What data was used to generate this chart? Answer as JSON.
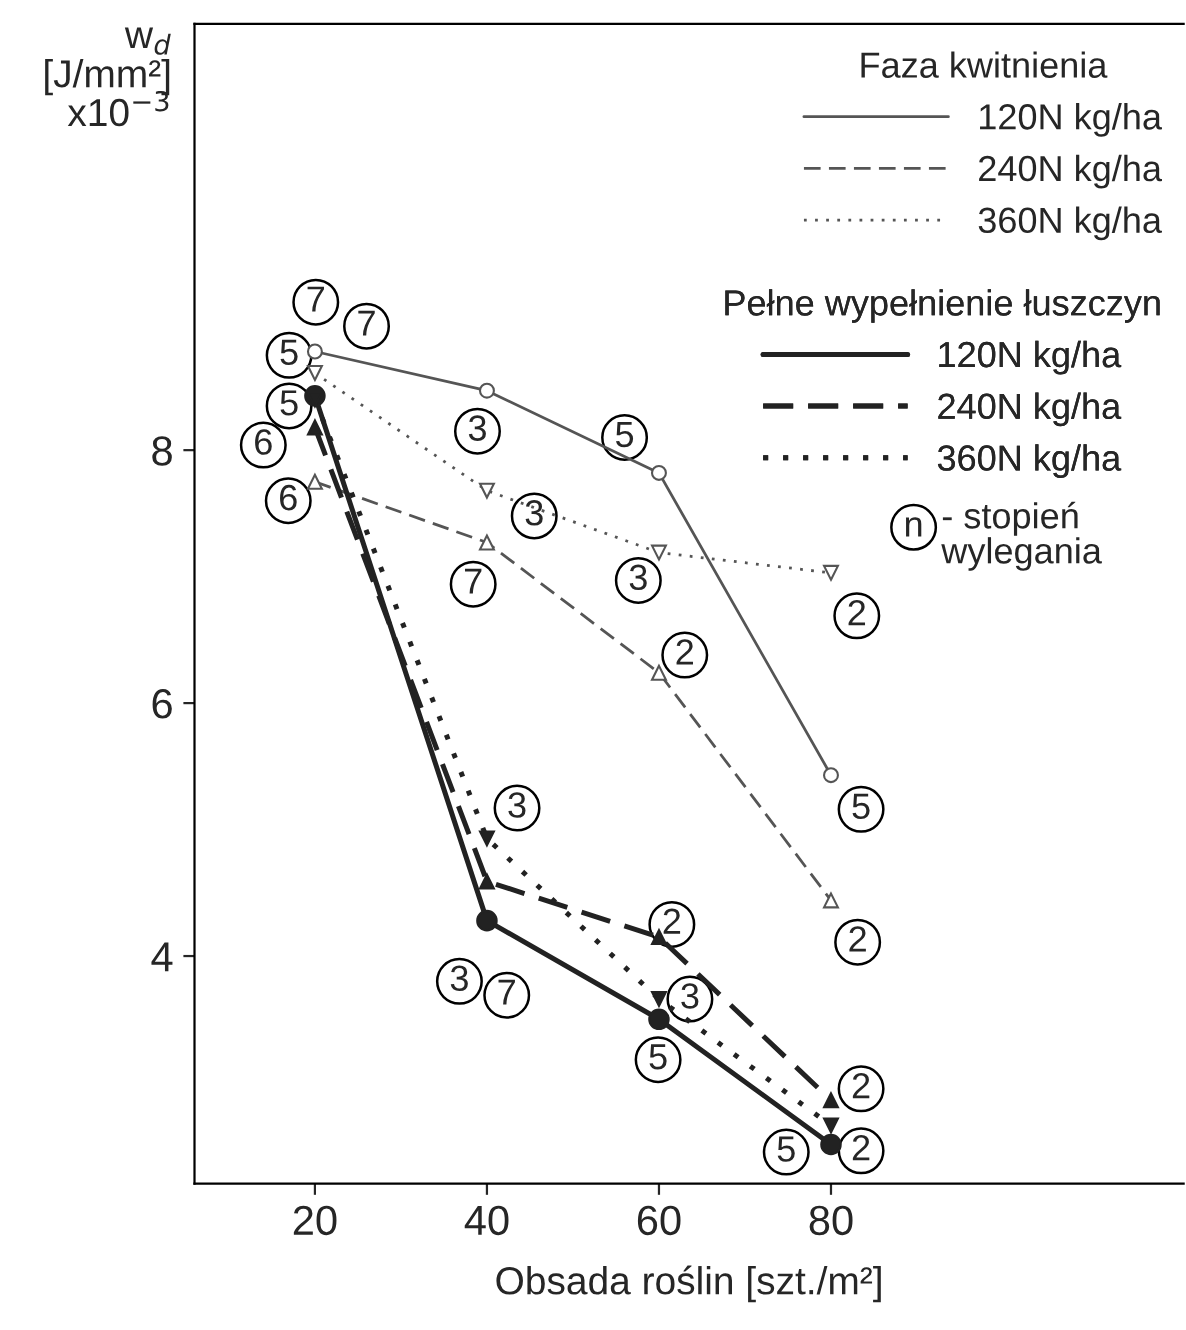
{
  "chart_data": {
    "type": "line",
    "xlabel": "Obsada roślin [szt./m²]",
    "ylabel": "w$_{d}$\n[J/mm²]\nx10$^{−3}$",
    "legend_title": [
      "Faza kwitnienia",
      "Pełne wypełnienie łuszczyn"
    ],
    "x": [
      20,
      40,
      60,
      80
    ],
    "series": [
      {
        "name": "120N kg/ha",
        "color": "#555555",
        "line_style": "solid",
        "marker": "circle",
        "values": [
          8.78,
          8.47,
          7.82,
          5.43
        ]
      },
      {
        "name": "240N kg/ha",
        "color": "#555555",
        "line_style": "dashed",
        "marker": "triangle",
        "values": [
          7.75,
          7.27,
          6.24,
          4.44
        ]
      },
      {
        "name": "360N kg/ha",
        "color": "#555555",
        "line_style": "dotted",
        "marker": "triangle_down",
        "values": [
          8.61,
          7.68,
          7.19,
          7.03
        ]
      },
      {
        "name": "120N kg/ha",
        "color": "#222222",
        "line_style": "solid",
        "marker": "circle",
        "values": [
          8.43,
          4.28,
          3.5,
          2.51
        ]
      },
      {
        "name": "240N kg/ha",
        "color": "#222222",
        "line_style": "dashed",
        "marker": "triangle",
        "values": [
          8.18,
          4.59,
          4.15,
          2.86
        ]
      },
      {
        "name": "360N kg/ha",
        "color": "#222222",
        "line_style": "dotted",
        "marker": "triangle_down",
        "values": [
          8.4,
          4.93,
          3.66,
          2.66
        ]
      }
    ],
    "annotations": [
      {
        "text": "7",
        "x": 20.1,
        "y": 9.17
      },
      {
        "text": "5",
        "x": 17.0,
        "y": 8.75
      },
      {
        "text": "7",
        "x": 26.0,
        "y": 8.98
      },
      {
        "text": "5",
        "x": 17.0,
        "y": 8.35
      },
      {
        "text": "6",
        "x": 14.0,
        "y": 8.04
      },
      {
        "text": "6",
        "x": 16.9,
        "y": 7.6
      },
      {
        "text": "3",
        "x": 38.9,
        "y": 8.15
      },
      {
        "text": "5",
        "x": 56.0,
        "y": 8.1
      },
      {
        "text": "3",
        "x": 45.5,
        "y": 7.48
      },
      {
        "text": "7",
        "x": 38.4,
        "y": 6.94
      },
      {
        "text": "3",
        "x": 57.6,
        "y": 6.97
      },
      {
        "text": "2",
        "x": 63.0,
        "y": 6.38
      },
      {
        "text": "2",
        "x": 83.0,
        "y": 6.69
      },
      {
        "text": "5",
        "x": 83.5,
        "y": 5.16
      },
      {
        "text": "3",
        "x": 43.5,
        "y": 5.17
      },
      {
        "text": "2",
        "x": 83.1,
        "y": 4.11
      },
      {
        "text": "2",
        "x": 61.5,
        "y": 4.25
      },
      {
        "text": "3",
        "x": 36.8,
        "y": 3.8
      },
      {
        "text": "7",
        "x": 42.3,
        "y": 3.69
      },
      {
        "text": "3",
        "x": 63.6,
        "y": 3.66
      },
      {
        "text": "5",
        "x": 59.9,
        "y": 3.18
      },
      {
        "text": "2",
        "x": 83.5,
        "y": 2.95
      },
      {
        "text": "5",
        "x": 74.8,
        "y": 2.45
      },
      {
        "text": "2",
        "x": 83.5,
        "y": 2.46
      },
      "n",
      "- stopień\nwylegania"
    ],
    "xlim": [
      6,
      121
    ],
    "ylim": [
      2.2,
      11.37
    ],
    "xticks": [
      20,
      40,
      60,
      80
    ],
    "yticks": [
      4,
      6,
      8
    ],
    "grid": false,
    "legend": "top right"
  }
}
